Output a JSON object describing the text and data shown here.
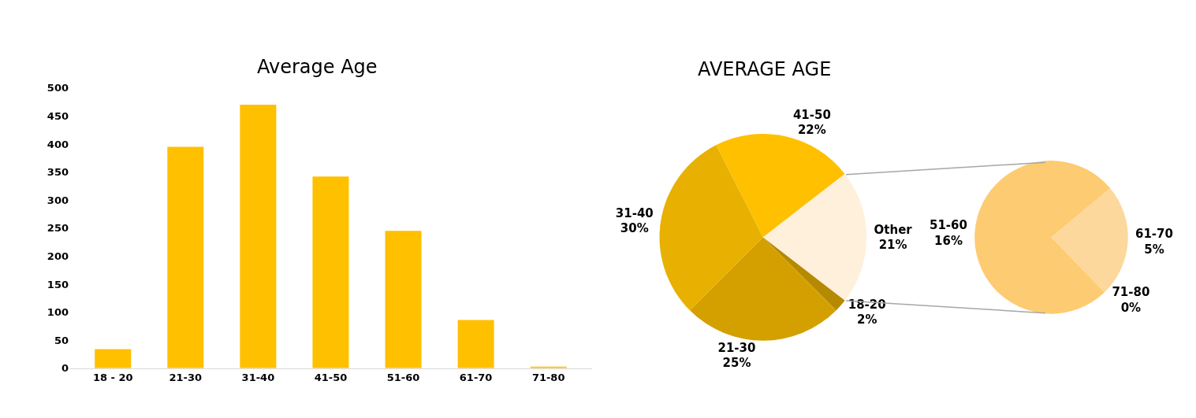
{
  "chart_data": [
    {
      "type": "bar",
      "title": "Average Age",
      "categories": [
        "18 - 20",
        "21-30",
        "31-40",
        "41-50",
        "51-60",
        "61-70",
        "71-80"
      ],
      "values": [
        34,
        395,
        470,
        342,
        245,
        86,
        3
      ],
      "color": "#ffc000",
      "ylim": [
        0,
        500
      ],
      "yticks": [
        0,
        50,
        100,
        150,
        200,
        250,
        300,
        350,
        400,
        450,
        500
      ]
    },
    {
      "type": "pie",
      "title": "AVERAGE AGE",
      "categories": [
        "41-50",
        "Other",
        "18-20",
        "21-30",
        "31-40"
      ],
      "values": [
        22,
        21,
        2,
        25,
        30
      ],
      "value_labels": [
        "22%",
        "21%",
        "2%",
        "25%",
        "30%"
      ],
      "colors": [
        "#ffc000",
        "#fff0dc",
        "#b58900",
        "#d4a000",
        "#e8b000"
      ]
    },
    {
      "type": "pie",
      "categories": [
        "51-60",
        "61-70",
        "71-80"
      ],
      "values": [
        16,
        5,
        0
      ],
      "value_labels": [
        "16%",
        "5%",
        "0%"
      ],
      "colors": [
        "#fdcb71",
        "#fdd89c",
        "#fde6c0"
      ]
    }
  ]
}
